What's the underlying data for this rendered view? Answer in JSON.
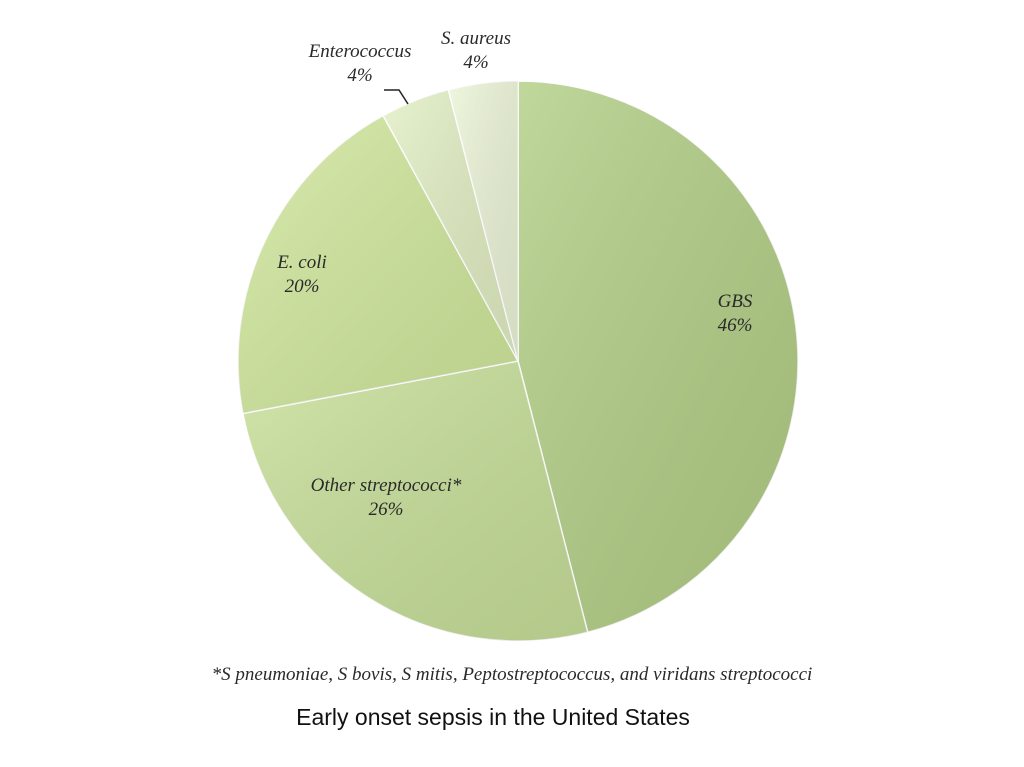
{
  "chart_data": {
    "type": "pie",
    "title": "",
    "slices": [
      {
        "label": "GBS",
        "value_label": "46%",
        "value": 46,
        "color": "#b3cf86"
      },
      {
        "label": "Other streptococci*",
        "value_label": "26%",
        "value": 26,
        "color": "#c8e09a"
      },
      {
        "label": "E. coli",
        "value_label": "20%",
        "value": 20,
        "color": "#d2e99e"
      },
      {
        "label": "Enterococcus",
        "value_label": "4%",
        "value": 4,
        "color": "#e2efc4"
      },
      {
        "label": "S. aureus",
        "value_label": "4%",
        "value": 4,
        "color": "#ecf5d8"
      }
    ],
    "legend": "none"
  },
  "footnote": "*S pneumoniae, S bovis, S mitis, Peptostreptococcus, and viridans streptococci",
  "caption": "Early onset sepsis in the United States"
}
